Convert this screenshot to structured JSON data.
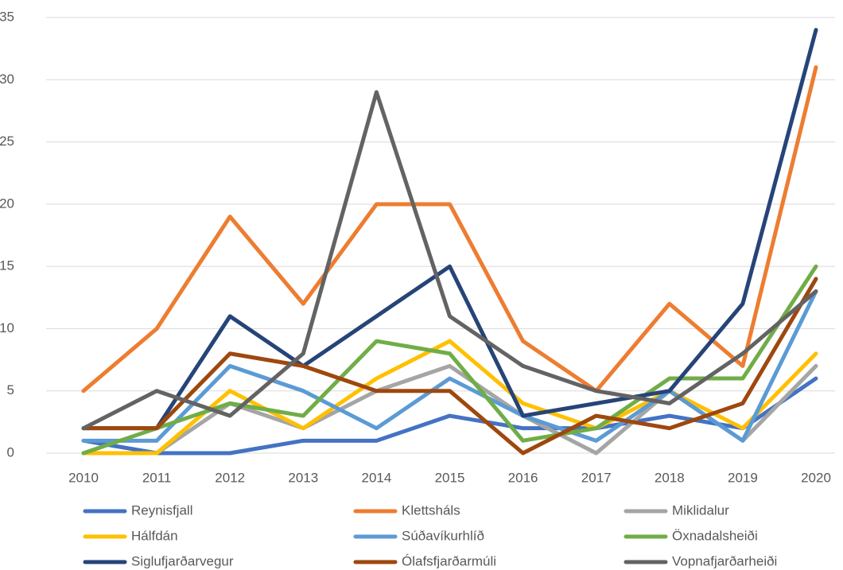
{
  "chart_data": {
    "type": "line",
    "categories": [
      "2010",
      "2011",
      "2012",
      "2013",
      "2014",
      "2015",
      "2016",
      "2017",
      "2018",
      "2019",
      "2020"
    ],
    "ylim": [
      0,
      35
    ],
    "yticks": [
      0,
      5,
      10,
      15,
      20,
      25,
      30,
      35
    ],
    "grid": true,
    "legend": "bottom",
    "series": [
      {
        "name": "Reynisfjall",
        "color": "#4472c4",
        "values": [
          1,
          0,
          0,
          1,
          1,
          3,
          2,
          2,
          3,
          2,
          6
        ]
      },
      {
        "name": "Klettsháls",
        "color": "#ed7d31",
        "values": [
          5,
          10,
          19,
          12,
          20,
          20,
          9,
          5,
          12,
          7,
          31
        ]
      },
      {
        "name": "Miklidalur",
        "color": "#a5a5a5",
        "values": [
          0,
          0,
          4,
          2,
          5,
          7,
          3,
          0,
          5,
          1,
          7
        ]
      },
      {
        "name": "Hálfdán",
        "color": "#ffc000",
        "values": [
          0,
          0,
          5,
          2,
          6,
          9,
          4,
          2,
          5,
          2,
          8
        ]
      },
      {
        "name": "Súðavíkurhlíð",
        "color": "#5b9bd5",
        "values": [
          1,
          1,
          7,
          5,
          2,
          6,
          3,
          1,
          5,
          1,
          13
        ]
      },
      {
        "name": "Öxnadalsheiði",
        "color": "#70ad47",
        "values": [
          0,
          2,
          4,
          3,
          9,
          8,
          1,
          2,
          6,
          6,
          15
        ]
      },
      {
        "name": "Siglufjarðarvegur",
        "color": "#264478",
        "values": [
          2,
          2,
          11,
          7,
          11,
          15,
          3,
          4,
          5,
          12,
          34
        ]
      },
      {
        "name": "Ólafsfjarðarmúli",
        "color": "#9e480e",
        "values": [
          2,
          2,
          8,
          7,
          5,
          5,
          0,
          3,
          2,
          4,
          14
        ]
      },
      {
        "name": "Vopnafjarðarheiði",
        "color": "#636363",
        "values": [
          2,
          5,
          3,
          8,
          29,
          11,
          7,
          5,
          4,
          8,
          13
        ]
      }
    ]
  }
}
